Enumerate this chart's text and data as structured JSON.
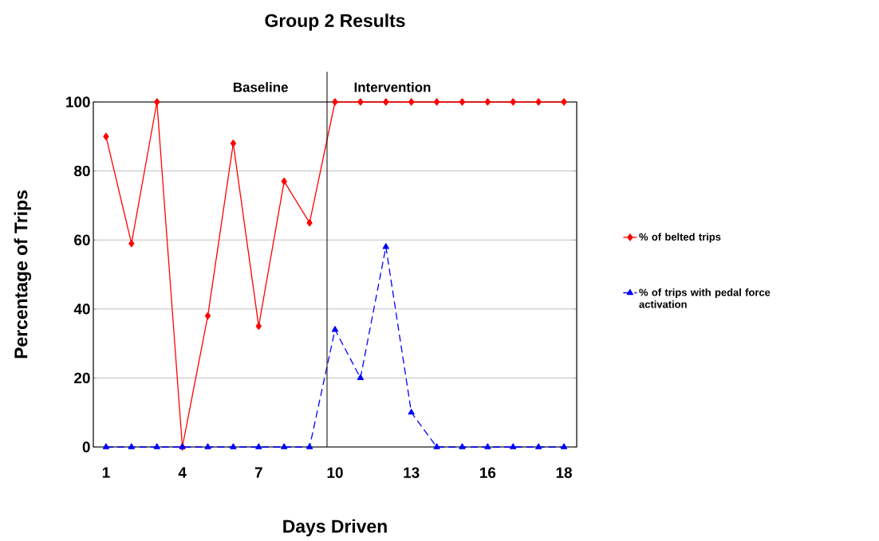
{
  "chart_data": {
    "type": "line",
    "title": "Group 2 Results",
    "xlabel": "Days Driven",
    "ylabel": "Percentage of Trips",
    "categories": [
      "1",
      null,
      null,
      "4",
      null,
      null,
      "7",
      null,
      null,
      "10",
      null,
      null,
      "13",
      null,
      null,
      "16",
      null,
      null,
      "18"
    ],
    "series": [
      {
        "name": "% of belted trips",
        "color": "#ff0000",
        "marker": "diamond",
        "line_style": "solid",
        "values": [
          90,
          59,
          100,
          0,
          38,
          88,
          35,
          77,
          65,
          100,
          100,
          100,
          100,
          100,
          100,
          100,
          100,
          100,
          100
        ]
      },
      {
        "name": "% of trips with pedal force activation",
        "color": "#0000ff",
        "marker": "triangle",
        "line_style": "dashed",
        "values": [
          0,
          0,
          0,
          0,
          0,
          0,
          0,
          0,
          0,
          34,
          20,
          58,
          10,
          0,
          0,
          0,
          0,
          0,
          0
        ]
      }
    ],
    "ylim": [
      0,
      100
    ],
    "yticks": [
      0,
      20,
      40,
      60,
      80,
      100
    ],
    "grid": "y",
    "legend": "right",
    "annotations": [
      "Baseline",
      "Intervention"
    ]
  }
}
